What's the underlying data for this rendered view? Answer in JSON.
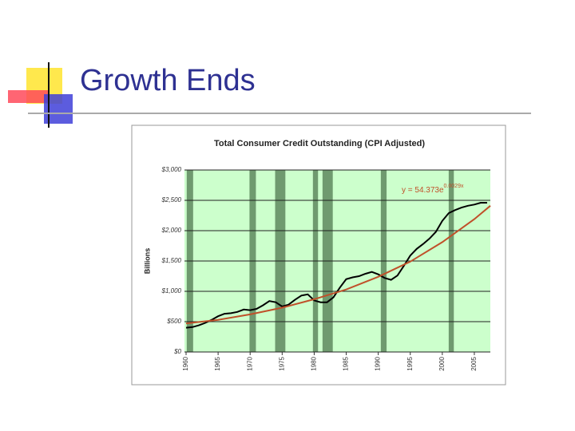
{
  "slide_title": "Growth Ends",
  "chart_data": {
    "type": "line",
    "title": "Total Consumer Credit Outstanding (CPI Adjusted)",
    "y_label": "Billions",
    "annotation": {
      "text": "y = 54.373e",
      "superscript": "0.0029x"
    },
    "xlim": [
      1959.75,
      2007.5
    ],
    "ylim": [
      0,
      3000
    ],
    "xticks": [
      1960,
      1965,
      1970,
      1975,
      1980,
      1985,
      1990,
      1995,
      2000,
      2005
    ],
    "yticks": [
      {
        "value": 0,
        "label": "$0"
      },
      {
        "value": 500,
        "label": "$500"
      },
      {
        "value": 1000,
        "label": "$1,000"
      },
      {
        "value": 1500,
        "label": "$1,500"
      },
      {
        "value": 2000,
        "label": "$2,000"
      },
      {
        "value": 2500,
        "label": "$2,500"
      },
      {
        "value": 3000,
        "label": "$3,000"
      }
    ],
    "grid": true,
    "plot_background": "#ccffcc",
    "shaded_ranges": [
      [
        1960.1,
        1961.1
      ],
      [
        1969.9,
        1970.9
      ],
      [
        1973.9,
        1975.5
      ],
      [
        1979.8,
        1980.6
      ],
      [
        1981.3,
        1982.9
      ],
      [
        1990.4,
        1991.3
      ],
      [
        2001.0,
        2001.8
      ]
    ],
    "shade_color": "#6f9a6f",
    "series": [
      {
        "color": "#000000",
        "x": [
          1960,
          1961,
          1962,
          1963,
          1964,
          1965,
          1966,
          1967,
          1968,
          1969,
          1970,
          1971,
          1972,
          1973,
          1974,
          1975,
          1976,
          1977,
          1978,
          1979,
          1980,
          1981,
          1982,
          1983,
          1984,
          1985,
          1986,
          1987,
          1988,
          1989,
          1990,
          1991,
          1992,
          1993,
          1994,
          1995,
          1996,
          1997,
          1998,
          1999,
          2000,
          2001,
          2002,
          2003,
          2004,
          2005,
          2006,
          2007
        ],
        "values": [
          400,
          410,
          440,
          480,
          530,
          590,
          630,
          640,
          660,
          700,
          690,
          710,
          770,
          840,
          820,
          750,
          780,
          860,
          930,
          950,
          850,
          820,
          820,
          900,
          1060,
          1200,
          1230,
          1250,
          1290,
          1320,
          1280,
          1220,
          1190,
          1260,
          1420,
          1590,
          1700,
          1780,
          1870,
          1980,
          2160,
          2290,
          2340,
          2380,
          2410,
          2430,
          2460,
          2460
        ]
      },
      {
        "color": "#c0502a",
        "x": [
          1960,
          1965,
          1970,
          1975,
          1980,
          1985,
          1990,
          1995,
          2000,
          2005,
          2007.5
        ],
        "values": [
          470,
          530,
          620,
          730,
          870,
          1030,
          1240,
          1490,
          1810,
          2190,
          2410
        ]
      }
    ]
  }
}
